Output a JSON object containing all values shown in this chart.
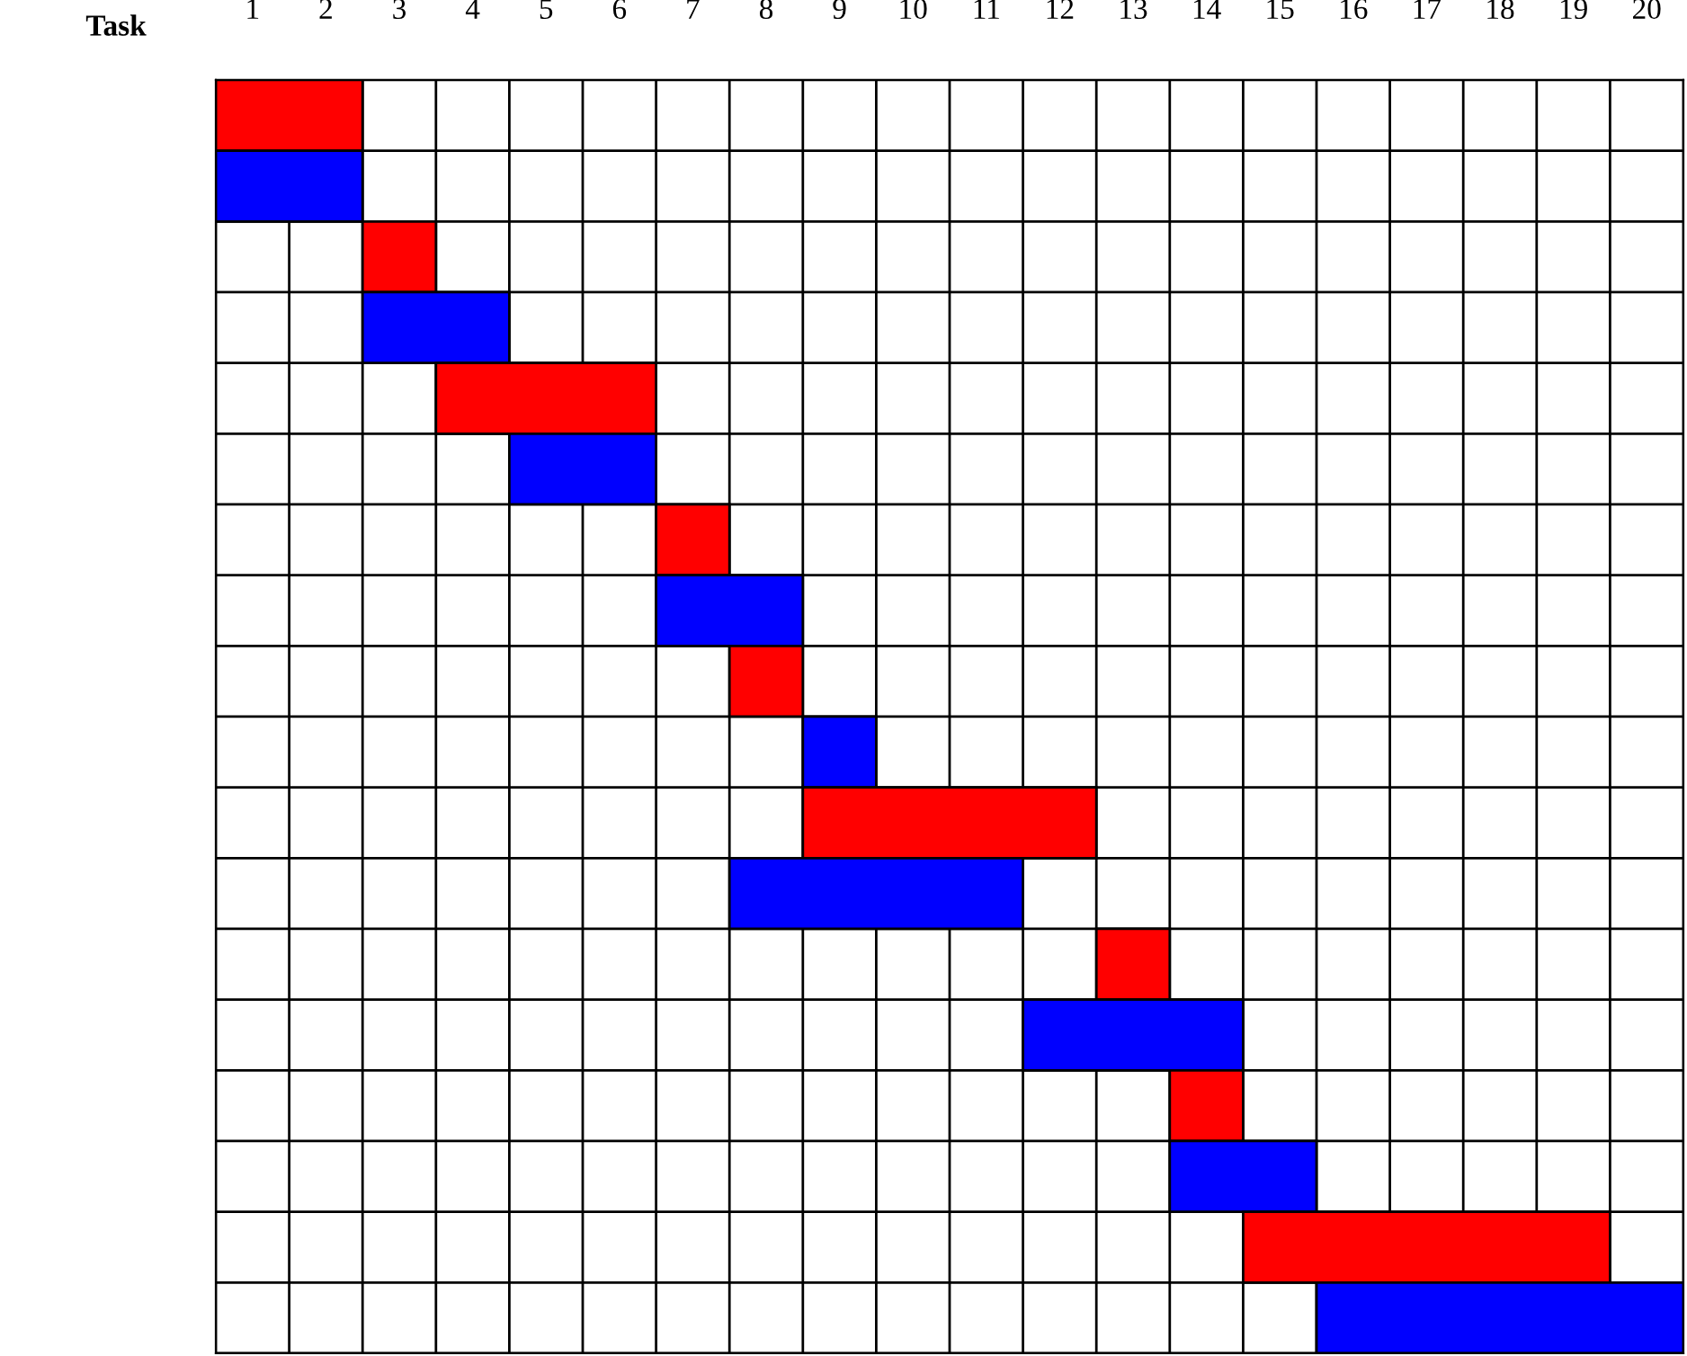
{
  "chart_data": {
    "type": "bar",
    "orientation": "horizontal",
    "ylabel": "Task",
    "categories": [
      null,
      null,
      null,
      null,
      null,
      null,
      null,
      null,
      null,
      null,
      null,
      null,
      null,
      null,
      null,
      null,
      null,
      null
    ],
    "base": [
      0,
      0,
      2,
      2,
      3,
      4,
      6,
      6,
      7,
      8,
      8,
      7,
      12,
      11,
      13,
      13,
      14,
      15
    ],
    "values": [
      2,
      2,
      1,
      2,
      3,
      2,
      1,
      2,
      1,
      1,
      4,
      4,
      1,
      3,
      1,
      2,
      5,
      5
    ],
    "colors": [
      "#ff0000",
      "#0000ff",
      "#ff0000",
      "#0000ff",
      "#ff0000",
      "#0000ff",
      "#ff0000",
      "#0000ff",
      "#ff0000",
      "#0000ff",
      "#ff0000",
      "#0000ff",
      "#ff0000",
      "#0000ff",
      "#ff0000",
      "#0000ff",
      "#ff0000",
      "#0000ff"
    ],
    "xlim": [
      0,
      20
    ],
    "xticks": [
      {
        "value": 0.5,
        "label": "1"
      },
      {
        "value": 1.5,
        "label": "2"
      },
      {
        "value": 2.5,
        "label": "3"
      },
      {
        "value": 3.5,
        "label": "4"
      },
      {
        "value": 4.5,
        "label": "5"
      },
      {
        "value": 5.5,
        "label": "6"
      },
      {
        "value": 6.5,
        "label": "7"
      },
      {
        "value": 7.5,
        "label": "8"
      },
      {
        "value": 8.5,
        "label": "9"
      },
      {
        "value": 9.5,
        "label": "10"
      },
      {
        "value": 10.5,
        "label": "11"
      },
      {
        "value": 11.5,
        "label": "12"
      },
      {
        "value": 12.5,
        "label": "13"
      },
      {
        "value": 13.5,
        "label": "14"
      },
      {
        "value": 14.5,
        "label": "15"
      },
      {
        "value": 15.5,
        "label": "16"
      },
      {
        "value": 16.5,
        "label": "17"
      },
      {
        "value": 17.5,
        "label": "18"
      },
      {
        "value": 18.5,
        "label": "19"
      },
      {
        "value": 19.5,
        "label": "20"
      }
    ],
    "tick_labels": "x",
    "grid": true
  }
}
